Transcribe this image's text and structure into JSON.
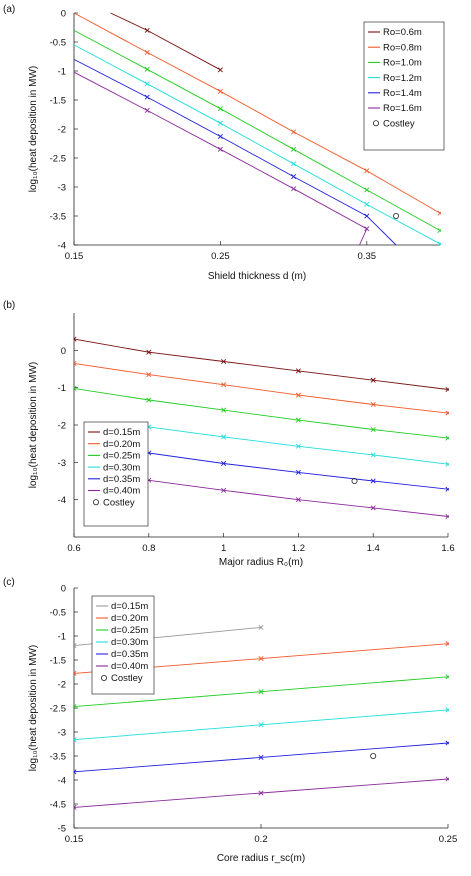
{
  "chart_data": [
    {
      "type": "line",
      "panel_label": "(a)",
      "xlabel": "Shield thickness d (m)",
      "ylabel": "log₁₀(heat deposition in MW)",
      "xlim": [
        0.15,
        0.4
      ],
      "ylim": [
        -4,
        0
      ],
      "xticks": [
        0.15,
        0.25,
        0.35
      ],
      "yticks": [
        0,
        -0.5,
        -1,
        -1.5,
        -2,
        -2.5,
        -3,
        -3.5,
        -4
      ],
      "grid": false,
      "legend_position": "top-right",
      "series": [
        {
          "name": "Ro=0.6m",
          "color": "#7a1010",
          "x": [
            0.2,
            0.25
          ],
          "y": [
            -0.3,
            -0.98
          ]
        },
        {
          "name": "Ro=0.8m",
          "color": "#f05a28",
          "x": [
            0.2,
            0.25,
            0.3,
            0.35,
            0.4
          ],
          "y": [
            -0.68,
            -1.35,
            -2.05,
            -2.72,
            -3.45
          ]
        },
        {
          "name": "Ro=1.0m",
          "color": "#22cc22",
          "x": [
            0.2,
            0.25,
            0.3,
            0.35,
            0.4
          ],
          "y": [
            -0.97,
            -1.65,
            -2.35,
            -3.05,
            -3.75
          ]
        },
        {
          "name": "Ro=1.2m",
          "color": "#22dddd",
          "x": [
            0.2,
            0.25,
            0.3,
            0.35,
            0.4
          ],
          "y": [
            -1.22,
            -1.9,
            -2.6,
            -3.3,
            -3.98
          ]
        },
        {
          "name": "Ro=1.4m",
          "color": "#2222dd",
          "x": [
            0.2,
            0.25,
            0.3,
            0.35
          ],
          "y": [
            -1.45,
            -2.13,
            -2.82,
            -3.5
          ]
        },
        {
          "name": "Ro=1.6m",
          "color": "#8a2a9a",
          "x": [
            0.2,
            0.25,
            0.3,
            0.35
          ],
          "y": [
            -1.68,
            -2.35,
            -3.03,
            -3.72
          ]
        }
      ],
      "series_start": [
        [
          0.175,
          0
        ],
        [
          0.15,
          0
        ],
        [
          0.15,
          -0.3
        ],
        [
          0.15,
          -0.55
        ],
        [
          0.15,
          -0.8
        ],
        [
          0.15,
          -1.02
        ]
      ],
      "series_end": [
        null,
        null,
        null,
        null,
        [
          0.37,
          -4
        ],
        [
          0.345,
          -4
        ]
      ],
      "reference": {
        "name": "Costley",
        "x": 0.37,
        "y": -3.5
      }
    },
    {
      "type": "line",
      "panel_label": "(b)",
      "xlabel": "Major radius R₀(m)",
      "ylabel": "log₁₀(heat deposition in MW)",
      "xlim": [
        0.6,
        1.6
      ],
      "ylim": [
        -5,
        1
      ],
      "xticks": [
        0.6,
        0.8,
        1,
        1.2,
        1.4,
        1.6
      ],
      "yticks": [
        0,
        -1,
        -2,
        -3,
        -4
      ],
      "grid": false,
      "legend_position": "bottom-left",
      "series": [
        {
          "name": "d=0.15m",
          "color": "#7a1010",
          "x": [
            0.6,
            0.8,
            1.0,
            1.2,
            1.4,
            1.6
          ],
          "y": [
            0.3,
            -0.05,
            -0.3,
            -0.55,
            -0.8,
            -1.05
          ]
        },
        {
          "name": "d=0.20m",
          "color": "#f05a28",
          "x": [
            0.6,
            0.8,
            1.0,
            1.2,
            1.4,
            1.6
          ],
          "y": [
            -0.35,
            -0.65,
            -0.92,
            -1.2,
            -1.45,
            -1.68
          ]
        },
        {
          "name": "d=0.25m",
          "color": "#22cc22",
          "x": [
            0.6,
            0.8,
            1.0,
            1.2,
            1.4,
            1.6
          ],
          "y": [
            -1.02,
            -1.33,
            -1.6,
            -1.87,
            -2.12,
            -2.35
          ]
        },
        {
          "name": "d=0.30m",
          "color": "#22dddd",
          "x": [
            0.8,
            1.0,
            1.2,
            1.4,
            1.6
          ],
          "y": [
            -2.05,
            -2.32,
            -2.57,
            -2.8,
            -3.05
          ]
        },
        {
          "name": "d=0.35m",
          "color": "#2222dd",
          "x": [
            0.8,
            1.0,
            1.2,
            1.4,
            1.6
          ],
          "y": [
            -2.75,
            -3.03,
            -3.27,
            -3.5,
            -3.72
          ]
        },
        {
          "name": "d=0.40m",
          "color": "#8a2a9a",
          "x": [
            0.8,
            1.0,
            1.2,
            1.4,
            1.6
          ],
          "y": [
            -3.48,
            -3.75,
            -4.0,
            -4.22,
            -4.45
          ]
        }
      ],
      "reference": {
        "name": "Costley",
        "x": 1.35,
        "y": -3.5
      }
    },
    {
      "type": "line",
      "panel_label": "(c)",
      "xlabel": "Core radius r_sc(m)",
      "ylabel": "log₁₀(heat deposition in MW)",
      "xlim": [
        0.15,
        0.25
      ],
      "ylim": [
        -5,
        0
      ],
      "xticks": [
        0.15,
        0.2,
        0.25
      ],
      "yticks": [
        0,
        -0.5,
        -1,
        -1.5,
        -2,
        -2.5,
        -3,
        -3.5,
        -4,
        -4.5,
        -5
      ],
      "grid": false,
      "legend_position": "top-left",
      "series": [
        {
          "name": "d=0.15m",
          "color": "#999999",
          "x": [
            0.15,
            0.2
          ],
          "y": [
            -1.2,
            -0.82
          ]
        },
        {
          "name": "d=0.20m",
          "color": "#f05a28",
          "x": [
            0.15,
            0.2,
            0.25
          ],
          "y": [
            -1.78,
            -1.47,
            -1.16
          ]
        },
        {
          "name": "d=0.25m",
          "color": "#22cc22",
          "x": [
            0.15,
            0.2,
            0.25
          ],
          "y": [
            -2.47,
            -2.16,
            -1.85
          ]
        },
        {
          "name": "d=0.30m",
          "color": "#22dddd",
          "x": [
            0.15,
            0.2,
            0.25
          ],
          "y": [
            -3.16,
            -2.85,
            -2.54
          ]
        },
        {
          "name": "d=0.35m",
          "color": "#2222dd",
          "x": [
            0.15,
            0.2,
            0.25
          ],
          "y": [
            -3.83,
            -3.53,
            -3.23
          ]
        },
        {
          "name": "d=0.40m",
          "color": "#8a2a9a",
          "x": [
            0.15,
            0.2,
            0.25
          ],
          "y": [
            -4.57,
            -4.27,
            -3.98
          ]
        }
      ],
      "reference": {
        "name": "Costley",
        "x": 0.23,
        "y": -3.5
      }
    }
  ]
}
